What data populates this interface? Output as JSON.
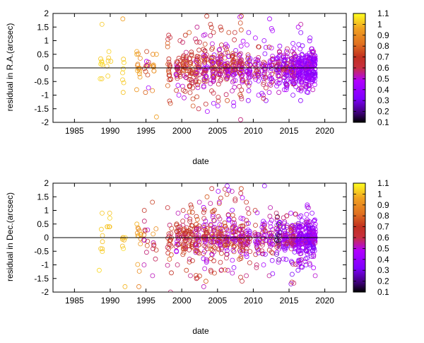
{
  "chart_data": [
    {
      "type": "scatter",
      "xlabel": "date",
      "ylabel": "residual in R.A.(arcsec)",
      "xlim": [
        1982,
        2023
      ],
      "ylim": [
        -2,
        2
      ],
      "x_ticks": [
        "1985",
        "1990",
        "1995",
        "2000",
        "2005",
        "2010",
        "2015",
        "2020"
      ],
      "y_ticks": [
        "-2",
        "-1.5",
        "-1",
        "-0.5",
        "0",
        "0.5",
        "1",
        "1.5",
        "2"
      ],
      "zero_line": true,
      "grid": false,
      "colorbar": {
        "range": [
          0.1,
          1.1
        ],
        "ticks": [
          "0.1",
          "0.2",
          "0.3",
          "0.4",
          "0.5",
          "0.6",
          "0.7",
          "0.8",
          "0.9",
          "1",
          "1.1"
        ],
        "palette": [
          "#000000",
          "#7f00ff",
          "#b000ff",
          "#c03030",
          "#e07020",
          "#ffd000",
          "#ffff20"
        ]
      },
      "clusters": [
        {
          "x": 1988.7,
          "spread": 0.3,
          "n": 8,
          "c": [
            1.0,
            1.05
          ],
          "y": [
            -0.4,
            1.6
          ]
        },
        {
          "x": 1989.8,
          "spread": 0.3,
          "n": 6,
          "c": [
            1.0,
            1.05
          ],
          "y": [
            -0.3,
            0.6
          ]
        },
        {
          "x": 1991.9,
          "spread": 0.2,
          "n": 8,
          "c": [
            0.95,
            1.05
          ],
          "y": [
            -0.9,
            1.8
          ]
        },
        {
          "x": 1994.0,
          "spread": 0.3,
          "n": 14,
          "c": [
            0.85,
            1.0
          ],
          "y": [
            -0.8,
            0.6
          ]
        },
        {
          "x": 1995.0,
          "spread": 0.4,
          "n": 12,
          "c": [
            0.45,
            0.9
          ],
          "y": [
            -0.9,
            0.6
          ]
        },
        {
          "x": 1996.2,
          "spread": 0.3,
          "n": 10,
          "c": [
            0.85,
            1.0
          ],
          "y": [
            -1.8,
            0.5
          ]
        },
        {
          "x": 1998.3,
          "spread": 0.3,
          "n": 22,
          "c": [
            0.6,
            0.8
          ],
          "y": [
            -1.3,
            1.2
          ]
        },
        {
          "x": 1999.5,
          "spread": 0.3,
          "n": 28,
          "c": [
            0.45,
            0.75
          ],
          "y": [
            -1.0,
            1.0
          ]
        },
        {
          "x": 2000.4,
          "spread": 0.3,
          "n": 35,
          "c": [
            0.5,
            0.8
          ],
          "y": [
            -1.1,
            1.2
          ]
        },
        {
          "x": 2001.3,
          "spread": 0.3,
          "n": 34,
          "c": [
            0.55,
            0.8
          ],
          "y": [
            -1.4,
            1.3
          ]
        },
        {
          "x": 2002.2,
          "spread": 0.3,
          "n": 40,
          "c": [
            0.45,
            0.8
          ],
          "y": [
            -1.5,
            1.5
          ]
        },
        {
          "x": 2003.3,
          "spread": 0.3,
          "n": 45,
          "c": [
            0.4,
            0.8
          ],
          "y": [
            -1.6,
            1.9
          ]
        },
        {
          "x": 2004.3,
          "spread": 0.3,
          "n": 45,
          "c": [
            0.4,
            0.8
          ],
          "y": [
            -1.3,
            1.6
          ]
        },
        {
          "x": 2005.3,
          "spread": 0.3,
          "n": 45,
          "c": [
            0.4,
            0.8
          ],
          "y": [
            -1.4,
            1.5
          ]
        },
        {
          "x": 2006.3,
          "spread": 0.3,
          "n": 45,
          "c": [
            0.35,
            0.8
          ],
          "y": [
            -1.2,
            1.3
          ]
        },
        {
          "x": 2007.3,
          "spread": 0.3,
          "n": 45,
          "c": [
            0.35,
            0.8
          ],
          "y": [
            -1.4,
            1.3
          ]
        },
        {
          "x": 2008.3,
          "spread": 0.3,
          "n": 50,
          "c": [
            0.45,
            0.8
          ],
          "y": [
            -1.9,
            1.9
          ]
        },
        {
          "x": 2009.3,
          "spread": 0.3,
          "n": 35,
          "c": [
            0.35,
            0.7
          ],
          "y": [
            -1.2,
            1.3
          ]
        },
        {
          "x": 2010.5,
          "spread": 0.3,
          "n": 28,
          "c": [
            0.35,
            0.7
          ],
          "y": [
            -1.0,
            1.1
          ]
        },
        {
          "x": 2011.5,
          "spread": 0.3,
          "n": 28,
          "c": [
            0.35,
            0.7
          ],
          "y": [
            -1.2,
            1.0
          ]
        },
        {
          "x": 2012.5,
          "spread": 0.3,
          "n": 30,
          "c": [
            0.35,
            0.7
          ],
          "y": [
            -0.9,
            1.8
          ]
        },
        {
          "x": 2013.5,
          "spread": 0.3,
          "n": 40,
          "c": [
            0.3,
            0.65
          ],
          "y": [
            -0.9,
            0.8
          ]
        },
        {
          "x": 2014.5,
          "spread": 0.3,
          "n": 55,
          "c": [
            0.3,
            0.65
          ],
          "y": [
            -0.8,
            0.7
          ]
        },
        {
          "x": 2015.6,
          "spread": 0.35,
          "n": 70,
          "c": [
            0.3,
            0.65
          ],
          "y": [
            -1.0,
            0.9
          ]
        },
        {
          "x": 2016.6,
          "spread": 0.35,
          "n": 80,
          "c": [
            0.3,
            0.55
          ],
          "y": [
            -1.2,
            1.6
          ]
        },
        {
          "x": 2017.6,
          "spread": 0.35,
          "n": 90,
          "c": [
            0.3,
            0.55
          ],
          "y": [
            -0.9,
            1.1
          ]
        },
        {
          "x": 2018.4,
          "spread": 0.3,
          "n": 70,
          "c": [
            0.3,
            0.55
          ],
          "y": [
            -0.8,
            0.7
          ]
        }
      ]
    },
    {
      "type": "scatter",
      "xlabel": "date",
      "ylabel": "residual in Dec.(arcsec)",
      "xlim": [
        1982,
        2023
      ],
      "ylim": [
        -2,
        2
      ],
      "x_ticks": [
        "1985",
        "1990",
        "1995",
        "2000",
        "2005",
        "2010",
        "2015",
        "2020"
      ],
      "y_ticks": [
        "-2",
        "-1.5",
        "-1",
        "-0.5",
        "0",
        "0.5",
        "1",
        "1.5",
        "2"
      ],
      "zero_line": true,
      "grid": false,
      "colorbar": {
        "range": [
          0.1,
          1.1
        ],
        "ticks": [
          "0.1",
          "0.2",
          "0.3",
          "0.4",
          "0.5",
          "0.6",
          "0.7",
          "0.8",
          "0.9",
          "1",
          "1.1"
        ],
        "palette": [
          "#000000",
          "#7f00ff",
          "#b000ff",
          "#c03030",
          "#e07020",
          "#ffd000",
          "#ffff20"
        ]
      },
      "clusters": [
        {
          "x": 1988.7,
          "spread": 0.3,
          "n": 8,
          "c": [
            1.0,
            1.05
          ],
          "y": [
            -1.2,
            0.9
          ]
        },
        {
          "x": 1989.8,
          "spread": 0.3,
          "n": 6,
          "c": [
            1.0,
            1.05
          ],
          "y": [
            0.4,
            0.9
          ]
        },
        {
          "x": 1991.9,
          "spread": 0.2,
          "n": 8,
          "c": [
            0.95,
            1.05
          ],
          "y": [
            -1.8,
            0.0
          ]
        },
        {
          "x": 1994.0,
          "spread": 0.3,
          "n": 14,
          "c": [
            0.85,
            1.0
          ],
          "y": [
            -1.8,
            0.5
          ]
        },
        {
          "x": 1995.0,
          "spread": 0.4,
          "n": 12,
          "c": [
            0.45,
            0.9
          ],
          "y": [
            -1.0,
            1.0
          ]
        },
        {
          "x": 1996.2,
          "spread": 0.3,
          "n": 10,
          "c": [
            0.5,
            1.0
          ],
          "y": [
            -1.4,
            1.3
          ]
        },
        {
          "x": 1998.3,
          "spread": 0.3,
          "n": 22,
          "c": [
            0.55,
            0.8
          ],
          "y": [
            -2.0,
            1.1
          ]
        },
        {
          "x": 1999.5,
          "spread": 0.3,
          "n": 28,
          "c": [
            0.45,
            0.75
          ],
          "y": [
            -1.0,
            0.9
          ]
        },
        {
          "x": 2000.4,
          "spread": 0.3,
          "n": 35,
          "c": [
            0.5,
            0.8
          ],
          "y": [
            -1.2,
            1.0
          ]
        },
        {
          "x": 2001.3,
          "spread": 0.3,
          "n": 34,
          "c": [
            0.55,
            0.8
          ],
          "y": [
            -1.4,
            1.2
          ]
        },
        {
          "x": 2002.2,
          "spread": 0.3,
          "n": 40,
          "c": [
            0.45,
            0.8
          ],
          "y": [
            -1.5,
            1.3
          ]
        },
        {
          "x": 2003.3,
          "spread": 0.3,
          "n": 45,
          "c": [
            0.4,
            0.8
          ],
          "y": [
            -1.8,
            1.5
          ]
        },
        {
          "x": 2004.3,
          "spread": 0.3,
          "n": 45,
          "c": [
            0.4,
            0.8
          ],
          "y": [
            -1.3,
            1.8
          ]
        },
        {
          "x": 2005.3,
          "spread": 0.3,
          "n": 45,
          "c": [
            0.4,
            0.8
          ],
          "y": [
            -1.2,
            1.7
          ]
        },
        {
          "x": 2006.3,
          "spread": 0.3,
          "n": 45,
          "c": [
            0.35,
            0.8
          ],
          "y": [
            -1.2,
            1.9
          ]
        },
        {
          "x": 2007.3,
          "spread": 0.3,
          "n": 45,
          "c": [
            0.35,
            0.8
          ],
          "y": [
            -1.3,
            1.7
          ]
        },
        {
          "x": 2008.3,
          "spread": 0.3,
          "n": 50,
          "c": [
            0.45,
            0.8
          ],
          "y": [
            -1.6,
            1.8
          ]
        },
        {
          "x": 2009.3,
          "spread": 0.3,
          "n": 35,
          "c": [
            0.35,
            0.7
          ],
          "y": [
            -1.4,
            1.3
          ]
        },
        {
          "x": 2010.5,
          "spread": 0.3,
          "n": 28,
          "c": [
            0.35,
            0.7
          ],
          "y": [
            -1.1,
            1.0
          ]
        },
        {
          "x": 2011.5,
          "spread": 0.3,
          "n": 28,
          "c": [
            0.35,
            0.7
          ],
          "y": [
            -1.0,
            1.9
          ]
        },
        {
          "x": 2012.5,
          "spread": 0.3,
          "n": 30,
          "c": [
            0.35,
            0.7
          ],
          "y": [
            -1.4,
            1.1
          ]
        },
        {
          "x": 2013.5,
          "spread": 0.3,
          "n": 40,
          "c": [
            0.1,
            0.65
          ],
          "y": [
            -0.9,
            0.9
          ]
        },
        {
          "x": 2014.5,
          "spread": 0.3,
          "n": 55,
          "c": [
            0.3,
            0.65
          ],
          "y": [
            -0.8,
            0.8
          ]
        },
        {
          "x": 2015.6,
          "spread": 0.35,
          "n": 70,
          "c": [
            0.3,
            0.65
          ],
          "y": [
            -1.7,
            0.9
          ]
        },
        {
          "x": 2016.6,
          "spread": 0.35,
          "n": 80,
          "c": [
            0.3,
            0.55
          ],
          "y": [
            -1.2,
            0.8
          ]
        },
        {
          "x": 2017.6,
          "spread": 0.35,
          "n": 90,
          "c": [
            0.3,
            0.55
          ],
          "y": [
            -1.0,
            1.2
          ]
        },
        {
          "x": 2018.4,
          "spread": 0.3,
          "n": 70,
          "c": [
            0.3,
            0.55
          ],
          "y": [
            -1.4,
            0.9
          ]
        }
      ]
    }
  ]
}
